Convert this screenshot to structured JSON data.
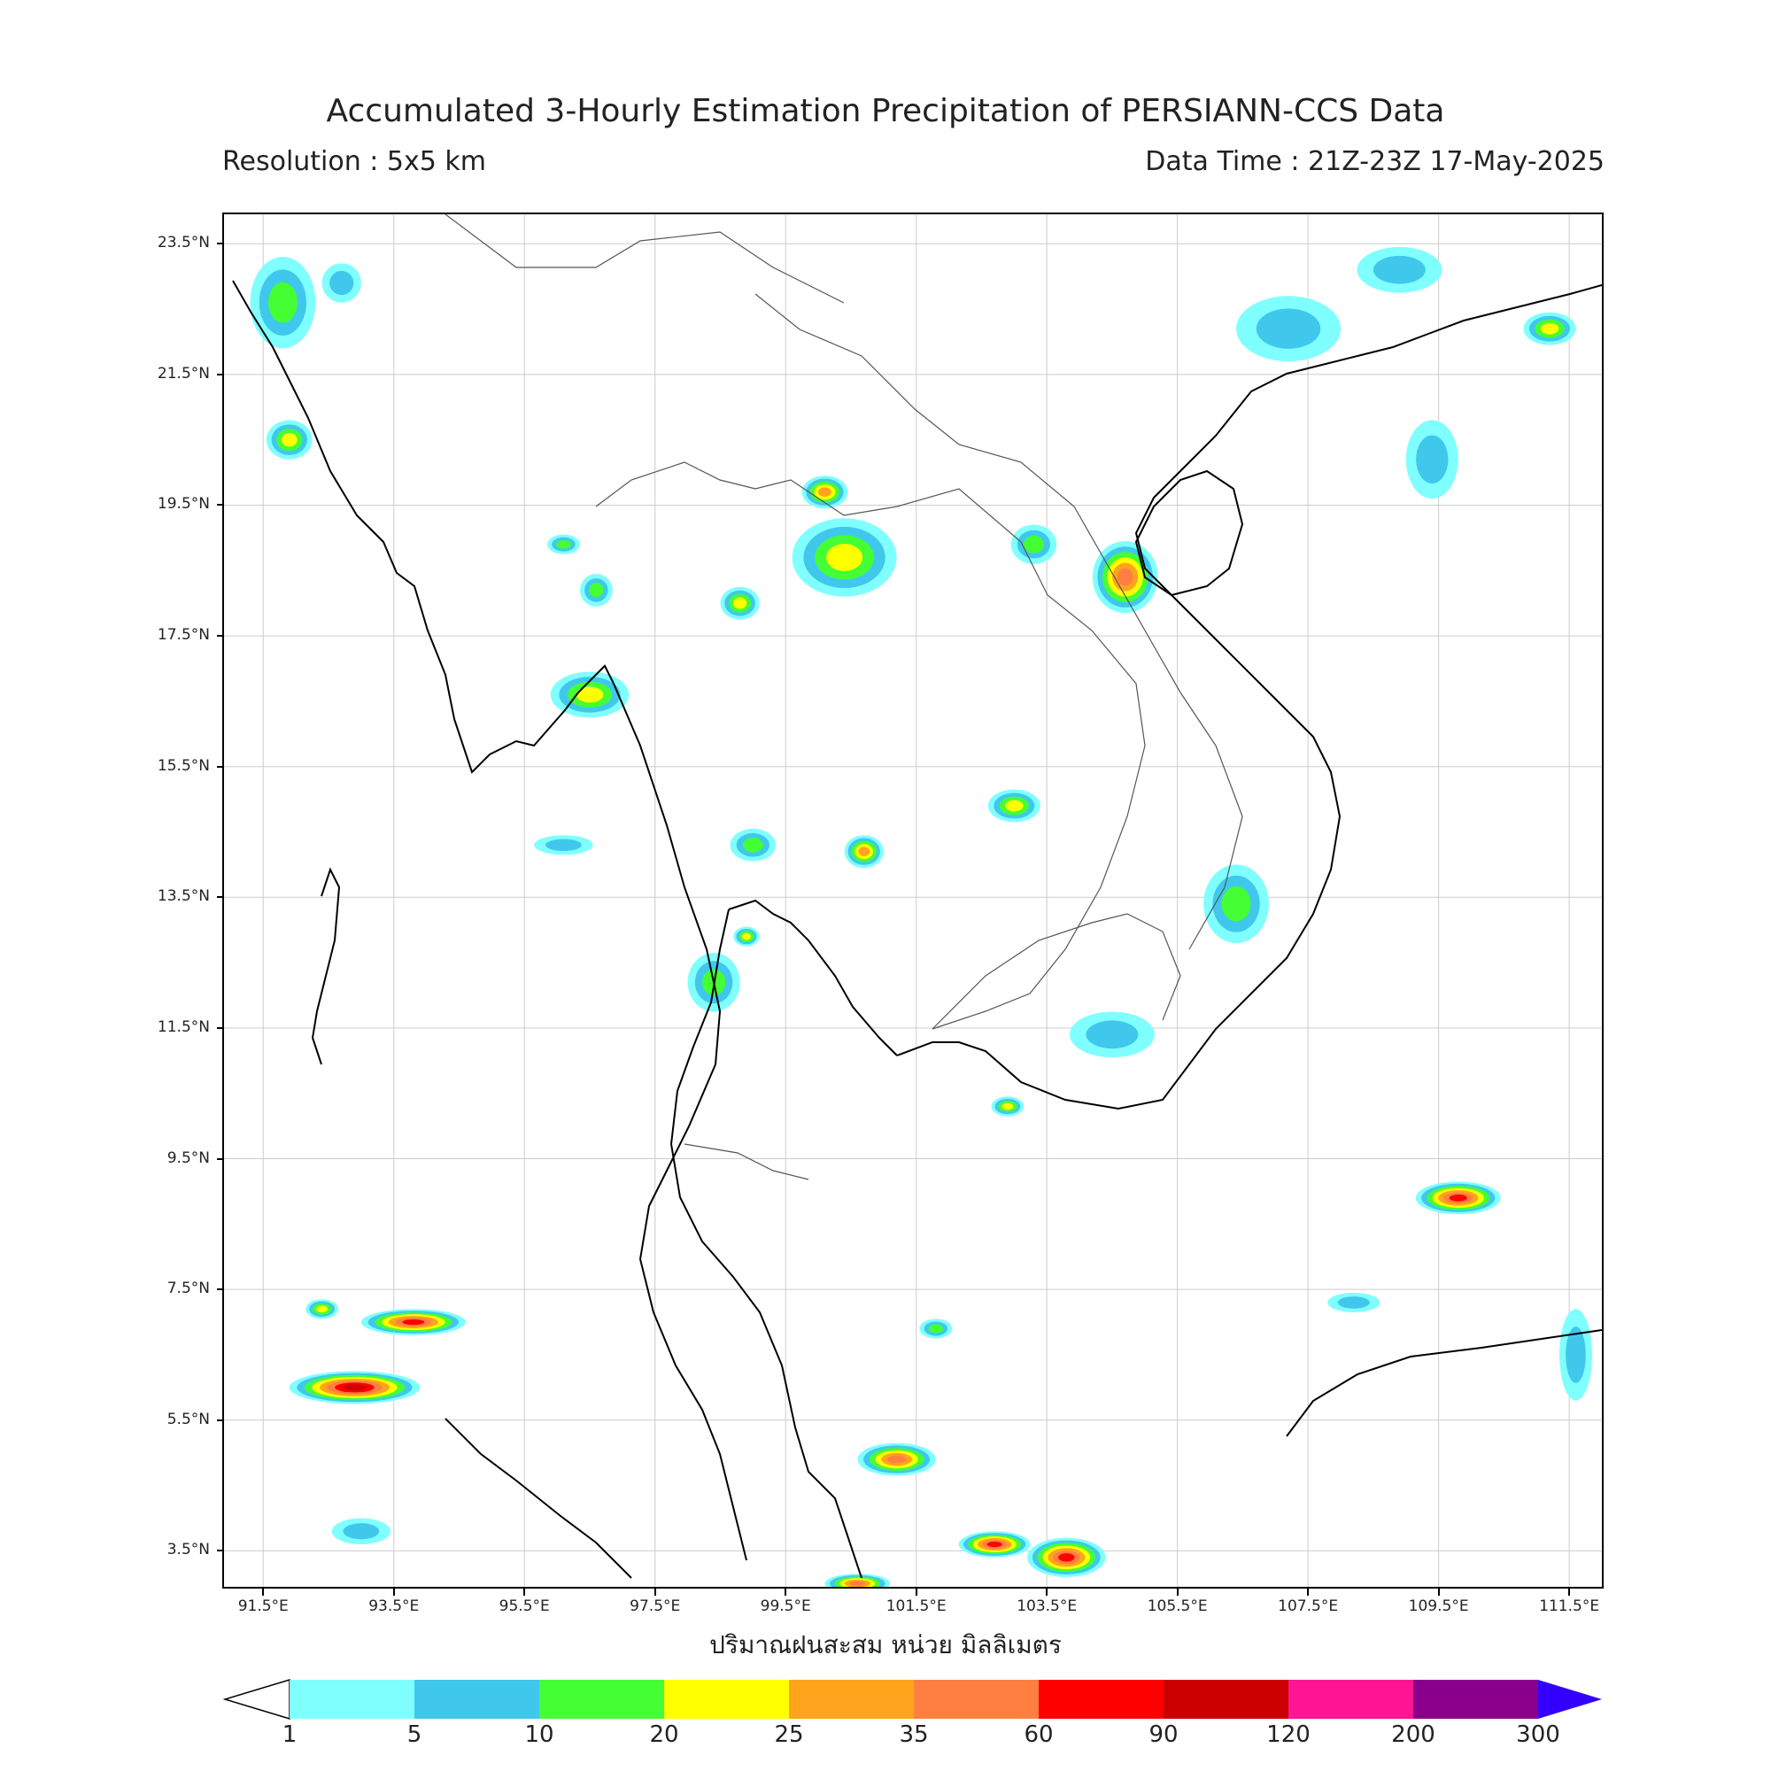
{
  "title": "Accumulated 3-Hourly Estimation Precipitation of PERSIANN-CCS Data",
  "resolution": "Resolution : 5x5 km",
  "data_time": "Data Time : 21Z-23Z 17-May-2025",
  "unit_label": "ปริมาณฝนสะสม หน่วย มิลลิเมตร",
  "axes": {
    "lon_range": [
      90.9,
      112.0
    ],
    "lat_range": [
      2.95,
      23.95
    ],
    "lat_labels": [
      "23.5°N",
      "21.5°N",
      "19.5°N",
      "17.5°N",
      "15.5°N",
      "13.5°N",
      "11.5°N",
      "9.5°N",
      "7.5°N",
      "5.5°N",
      "3.5°N"
    ],
    "lat_values": [
      23.5,
      21.5,
      19.5,
      17.5,
      15.5,
      13.5,
      11.5,
      9.5,
      7.5,
      5.5,
      3.5
    ],
    "lon_labels": [
      "91.5°E",
      "93.5°E",
      "95.5°E",
      "97.5°E",
      "99.5°E",
      "101.5°E",
      "103.5°E",
      "105.5°E",
      "107.5°E",
      "109.5°E",
      "111.5°E"
    ],
    "lon_values": [
      91.5,
      93.5,
      95.5,
      97.5,
      99.5,
      101.5,
      103.5,
      105.5,
      107.5,
      109.5,
      111.5
    ],
    "grid": true
  },
  "colorbar": {
    "labels": [
      "1",
      "5",
      "10",
      "20",
      "25",
      "35",
      "60",
      "90",
      "120",
      "200",
      "300"
    ],
    "colors": [
      "#80ffff",
      "#40c8ec",
      "#44ff33",
      "#ffff00",
      "#ffa41c",
      "#ff7f40",
      "#ff0000",
      "#cc0000",
      "#ff1493",
      "#8b008b"
    ],
    "under_color": "#ffffff",
    "over_color": "#3300ff"
  },
  "rain_cells": [
    {
      "lon": 91.8,
      "lat": 22.6,
      "w": 1.0,
      "h": 1.4,
      "max": 2
    },
    {
      "lon": 91.9,
      "lat": 20.5,
      "w": 0.7,
      "h": 0.6,
      "max": 3
    },
    {
      "lon": 92.7,
      "lat": 22.9,
      "w": 0.6,
      "h": 0.6,
      "max": 1
    },
    {
      "lon": 100.1,
      "lat": 19.7,
      "w": 0.7,
      "h": 0.5,
      "max": 4
    },
    {
      "lon": 100.4,
      "lat": 18.7,
      "w": 1.6,
      "h": 1.2,
      "max": 3
    },
    {
      "lon": 98.8,
      "lat": 18.0,
      "w": 0.6,
      "h": 0.5,
      "max": 3
    },
    {
      "lon": 96.6,
      "lat": 18.2,
      "w": 0.5,
      "h": 0.5,
      "max": 2
    },
    {
      "lon": 96.5,
      "lat": 16.6,
      "w": 1.2,
      "h": 0.7,
      "max": 3
    },
    {
      "lon": 96.1,
      "lat": 18.9,
      "w": 0.5,
      "h": 0.3,
      "max": 2
    },
    {
      "lon": 103.3,
      "lat": 18.9,
      "w": 0.7,
      "h": 0.6,
      "max": 2
    },
    {
      "lon": 104.7,
      "lat": 18.4,
      "w": 1.0,
      "h": 1.1,
      "max": 5
    },
    {
      "lon": 103.0,
      "lat": 14.9,
      "w": 0.8,
      "h": 0.5,
      "max": 3
    },
    {
      "lon": 100.7,
      "lat": 14.2,
      "w": 0.6,
      "h": 0.5,
      "max": 4
    },
    {
      "lon": 99.0,
      "lat": 14.3,
      "w": 0.7,
      "h": 0.5,
      "max": 2
    },
    {
      "lon": 106.4,
      "lat": 13.4,
      "w": 1.0,
      "h": 1.2,
      "max": 2
    },
    {
      "lon": 98.4,
      "lat": 12.2,
      "w": 0.8,
      "h": 0.9,
      "max": 2
    },
    {
      "lon": 98.9,
      "lat": 12.9,
      "w": 0.4,
      "h": 0.3,
      "max": 3
    },
    {
      "lon": 104.5,
      "lat": 11.4,
      "w": 1.3,
      "h": 0.7,
      "max": 1
    },
    {
      "lon": 107.2,
      "lat": 22.2,
      "w": 1.6,
      "h": 1.0,
      "max": 1
    },
    {
      "lon": 108.9,
      "lat": 23.1,
      "w": 1.3,
      "h": 0.7,
      "max": 1
    },
    {
      "lon": 111.2,
      "lat": 22.2,
      "w": 0.8,
      "h": 0.5,
      "max": 3
    },
    {
      "lon": 109.4,
      "lat": 20.2,
      "w": 0.8,
      "h": 1.2,
      "max": 1
    },
    {
      "lon": 109.8,
      "lat": 8.9,
      "w": 1.3,
      "h": 0.5,
      "max": 6
    },
    {
      "lon": 92.9,
      "lat": 6.0,
      "w": 2.0,
      "h": 0.5,
      "max": 7
    },
    {
      "lon": 93.8,
      "lat": 7.0,
      "w": 1.6,
      "h": 0.4,
      "max": 6
    },
    {
      "lon": 92.4,
      "lat": 7.2,
      "w": 0.5,
      "h": 0.3,
      "max": 3
    },
    {
      "lon": 101.2,
      "lat": 4.9,
      "w": 1.2,
      "h": 0.5,
      "max": 5
    },
    {
      "lon": 102.7,
      "lat": 3.6,
      "w": 1.1,
      "h": 0.4,
      "max": 6
    },
    {
      "lon": 103.8,
      "lat": 3.4,
      "w": 1.2,
      "h": 0.6,
      "max": 6
    },
    {
      "lon": 100.6,
      "lat": 3.0,
      "w": 1.0,
      "h": 0.3,
      "max": 5
    },
    {
      "lon": 93.0,
      "lat": 3.8,
      "w": 0.9,
      "h": 0.4,
      "max": 1
    },
    {
      "lon": 102.9,
      "lat": 10.3,
      "w": 0.5,
      "h": 0.3,
      "max": 3
    },
    {
      "lon": 101.8,
      "lat": 6.9,
      "w": 0.5,
      "h": 0.3,
      "max": 2
    },
    {
      "lon": 111.6,
      "lat": 6.5,
      "w": 0.5,
      "h": 1.4,
      "max": 1
    },
    {
      "lon": 108.2,
      "lat": 7.3,
      "w": 0.8,
      "h": 0.3,
      "max": 1
    },
    {
      "lon": 96.1,
      "lat": 14.3,
      "w": 0.9,
      "h": 0.3,
      "max": 1
    }
  ]
}
